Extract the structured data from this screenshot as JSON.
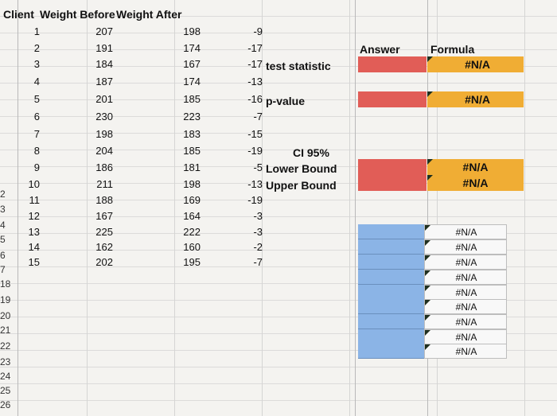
{
  "headers": {
    "client": "Client",
    "before": "Weight Before",
    "after": "Weight After"
  },
  "rows": [
    {
      "client": "1",
      "before": "207",
      "after": "198",
      "diff": "-9"
    },
    {
      "client": "2",
      "before": "191",
      "after": "174",
      "diff": "-17"
    },
    {
      "client": "3",
      "before": "184",
      "after": "167",
      "diff": "-17"
    },
    {
      "client": "4",
      "before": "187",
      "after": "174",
      "diff": "-13"
    },
    {
      "client": "5",
      "before": "201",
      "after": "185",
      "diff": "-16"
    },
    {
      "client": "6",
      "before": "230",
      "after": "223",
      "diff": "-7"
    },
    {
      "client": "7",
      "before": "198",
      "after": "183",
      "diff": "-15"
    },
    {
      "client": "8",
      "before": "204",
      "after": "185",
      "diff": "-19"
    },
    {
      "client": "9",
      "before": "186",
      "after": "181",
      "diff": "-5"
    },
    {
      "client": "10",
      "before": "211",
      "after": "198",
      "diff": "-13"
    },
    {
      "client": "11",
      "before": "188",
      "after": "169",
      "diff": "-19"
    },
    {
      "client": "12",
      "before": "167",
      "after": "164",
      "diff": "-3"
    },
    {
      "client": "13",
      "before": "225",
      "after": "222",
      "diff": "-3"
    },
    {
      "client": "14",
      "before": "162",
      "after": "160",
      "diff": "-2"
    },
    {
      "client": "15",
      "before": "202",
      "after": "195",
      "diff": "-7"
    }
  ],
  "row_numbers": [
    "2",
    "3",
    "4",
    "5",
    "6",
    "7",
    "18",
    "19",
    "20",
    "21",
    "22",
    "23",
    "24",
    "25",
    "26"
  ],
  "labels": {
    "answer": "Answer",
    "formula": "Formula",
    "test_statistic": "test statistic",
    "p_value": "p-value",
    "ci": "CI 95%",
    "lower_bound": "Lower Bound",
    "upper_bound": "Upper Bound"
  },
  "formula_values": {
    "test_statistic": "#N/A",
    "p_value": "#N/A",
    "lower_bound": "#N/A",
    "upper_bound": "#N/A",
    "list": [
      "#N/A",
      "#N/A",
      "#N/A",
      "#N/A",
      "#N/A",
      "#N/A",
      "#N/A",
      "#N/A",
      "#N/A"
    ]
  },
  "colors": {
    "red": "#e15d57",
    "orange": "#f0ad34",
    "blue": "#8bb4e6"
  }
}
